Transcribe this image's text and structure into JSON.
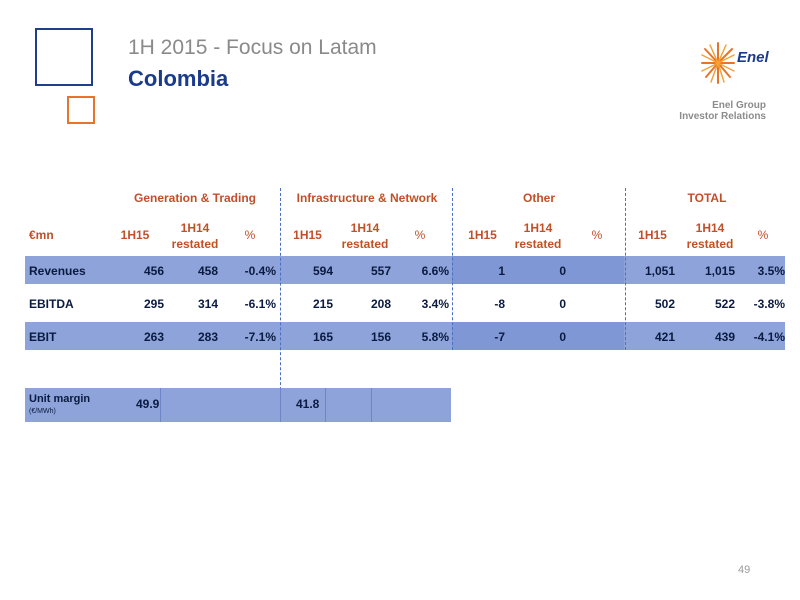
{
  "header": {
    "subtitle": "1H 2015 - Focus on Latam",
    "title": "Colombia",
    "logo_text": "Enel",
    "group_line1": "Enel Group",
    "group_line2": "Investor Relations"
  },
  "table": {
    "unit_label": "€mn",
    "segments": [
      "Generation & Trading",
      "Infrastructure & Network",
      "Other",
      "TOTAL"
    ],
    "col_current": "1H15",
    "col_prior_line1": "1H14",
    "col_prior_line2": "restated",
    "col_pct": "%",
    "rows": [
      {
        "label": "Revenues",
        "gen": [
          "456",
          "458",
          "-0.4%"
        ],
        "infra": [
          "594",
          "557",
          "6.6%"
        ],
        "other": [
          "1",
          "0",
          ""
        ],
        "total": [
          "1,051",
          "1,015",
          "3.5%"
        ]
      },
      {
        "label": "EBITDA",
        "gen": [
          "295",
          "314",
          "-6.1%"
        ],
        "infra": [
          "215",
          "208",
          "3.4%"
        ],
        "other": [
          "-8",
          "0",
          ""
        ],
        "total": [
          "502",
          "522",
          "-3.8%"
        ]
      },
      {
        "label": "EBIT",
        "gen": [
          "263",
          "283",
          "-7.1%"
        ],
        "infra": [
          "165",
          "156",
          "5.8%"
        ],
        "other": [
          "-7",
          "0",
          ""
        ],
        "total": [
          "421",
          "439",
          "-4.1%"
        ]
      }
    ],
    "unit_margin": {
      "label": "Unit margin",
      "unit": "(€/MWh)",
      "gen": "49.9",
      "infra": "41.8"
    }
  },
  "footer": {
    "page_number": "49"
  },
  "colors": {
    "brand_blue": "#1a3a8c",
    "accent_orange": "#e8742a",
    "row_band": "#8da3d9",
    "header_text": "#c0502a"
  }
}
